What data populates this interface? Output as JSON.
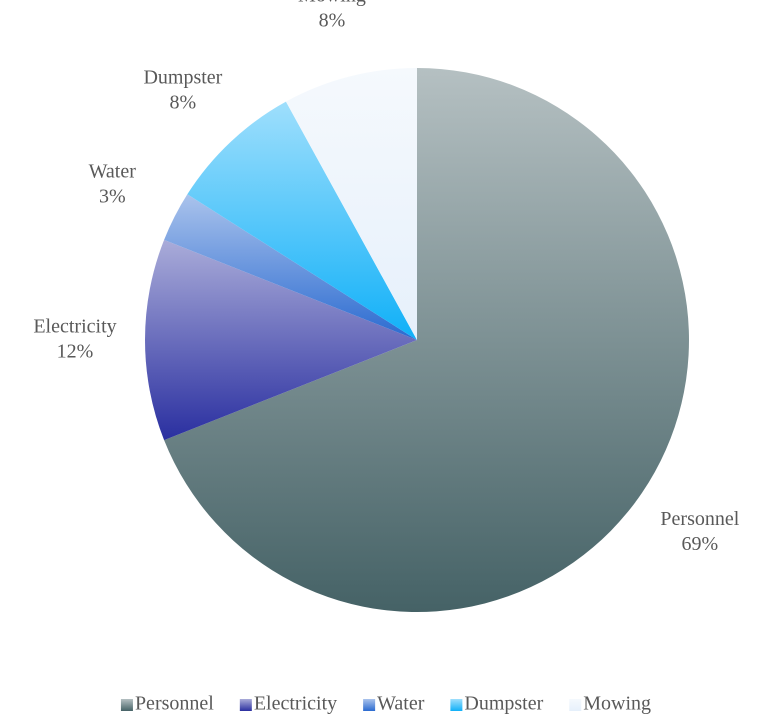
{
  "chart_data": {
    "type": "pie",
    "categories": [
      "Personnel",
      "Electricity",
      "Water",
      "Dumpster",
      "Mowing"
    ],
    "values": [
      69,
      12,
      3,
      8,
      8
    ],
    "value_labels": [
      "69%",
      "12%",
      "3%",
      "8%",
      "8%"
    ],
    "colors": [
      "#456266",
      "#2a2fa0",
      "#2a6ad0",
      "#10b0f8",
      "#e6f0fb"
    ],
    "legend": "bottom"
  }
}
